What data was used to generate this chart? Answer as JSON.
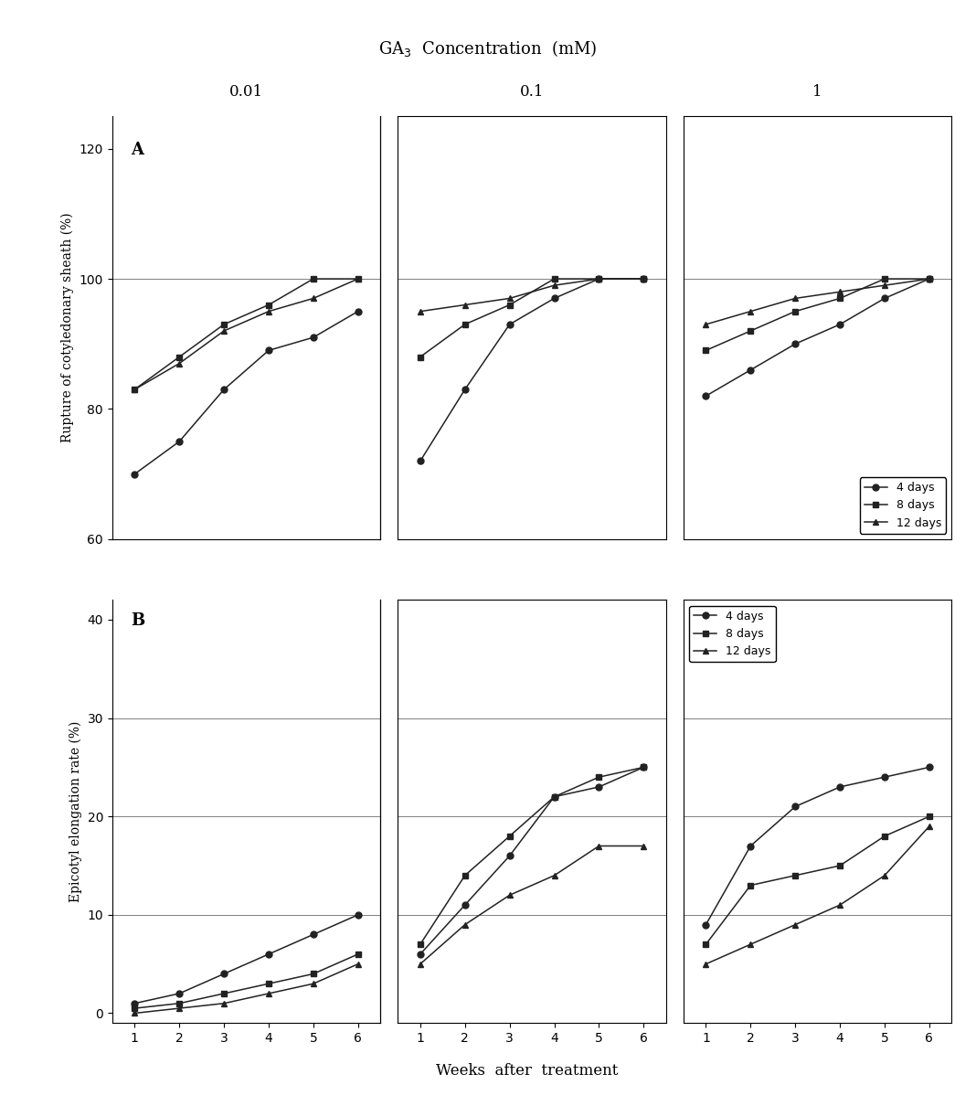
{
  "title": "GA$_3$  Concentration  (mM)",
  "col_labels": [
    "0.01",
    "0.1",
    "1"
  ],
  "xlabel": "Weeks  after  treatment",
  "ylabel_A": "Rupture of cotyledonary sheath (%)",
  "ylabel_B": "Epicotyl elongation rate (%)",
  "x_weeks": [
    1,
    2,
    3,
    4,
    5,
    6
  ],
  "panel_A_label": "A",
  "panel_B_label": "B",
  "legend_labels": [
    "4 days",
    "8 days",
    "12 days"
  ],
  "A_data": {
    "col1": {
      "4days": [
        70,
        75,
        83,
        89,
        91,
        95
      ],
      "8days": [
        83,
        88,
        93,
        96,
        100,
        100
      ],
      "12days": [
        83,
        87,
        92,
        95,
        97,
        100
      ]
    },
    "col2": {
      "4days": [
        72,
        83,
        93,
        97,
        100,
        100
      ],
      "8days": [
        88,
        93,
        96,
        100,
        100,
        100
      ],
      "12days": [
        95,
        96,
        97,
        99,
        100,
        100
      ]
    },
    "col3": {
      "4days": [
        82,
        86,
        90,
        93,
        97,
        100
      ],
      "8days": [
        89,
        92,
        95,
        97,
        100,
        100
      ],
      "12days": [
        93,
        95,
        97,
        98,
        99,
        100
      ]
    }
  },
  "B_data": {
    "col1": {
      "4days": [
        1,
        2,
        4,
        6,
        8,
        10
      ],
      "8days": [
        0.5,
        1,
        2,
        3,
        4,
        6
      ],
      "12days": [
        0,
        0.5,
        1,
        2,
        3,
        5
      ]
    },
    "col2": {
      "4days": [
        6,
        11,
        16,
        22,
        23,
        25
      ],
      "8days": [
        7,
        14,
        18,
        22,
        24,
        25
      ],
      "12days": [
        5,
        9,
        12,
        14,
        17,
        17
      ]
    },
    "col3": {
      "4days": [
        9,
        17,
        21,
        23,
        24,
        25
      ],
      "8days": [
        7,
        13,
        14,
        15,
        18,
        20
      ],
      "12days": [
        5,
        7,
        9,
        11,
        14,
        19
      ]
    }
  },
  "A_ylim": [
    60,
    125
  ],
  "A_yticks": [
    60,
    80,
    100,
    120
  ],
  "B_ylim": [
    -1,
    42
  ],
  "B_yticks": [
    0,
    10,
    20,
    30,
    40
  ],
  "A_hline": 100,
  "B_hlines": [
    10,
    20,
    30
  ],
  "marker_4days": "o",
  "marker_8days": "s",
  "marker_12days": "^",
  "line_color": "#222222",
  "marker_size": 5,
  "line_width": 1.1,
  "legend_fontsize": 9,
  "tick_fontsize": 10,
  "label_fontsize": 10,
  "title_fontsize": 13,
  "panel_label_fontsize": 13
}
